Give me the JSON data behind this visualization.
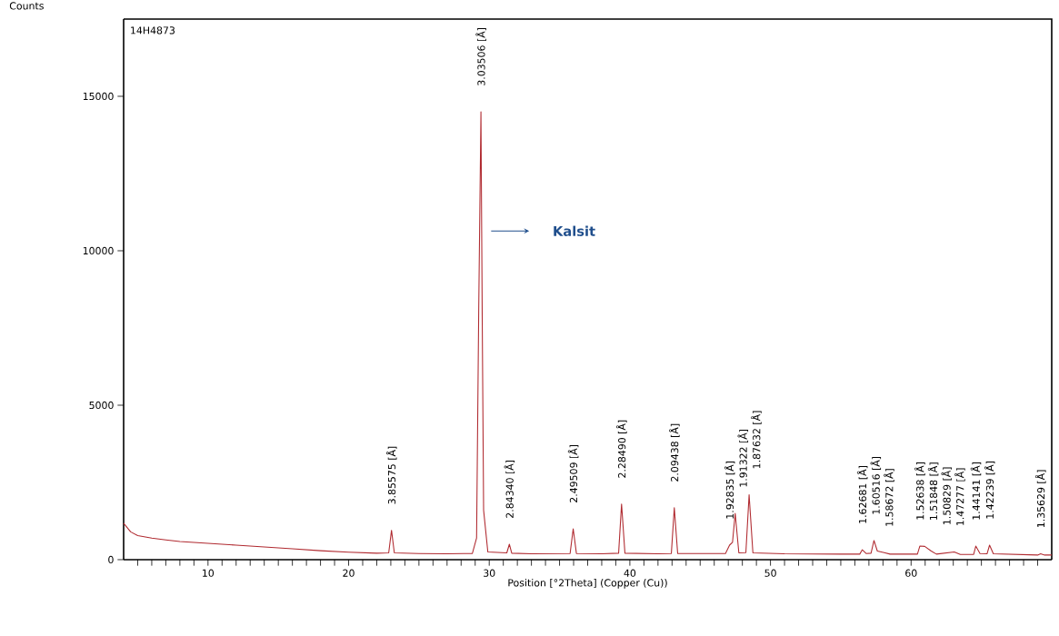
{
  "chart_data": {
    "type": "line",
    "xlabel": "Position [°2Theta] (Copper (Cu))",
    "ylabel": "Counts",
    "xlim": [
      4,
      70
    ],
    "ylim": [
      0,
      17500
    ],
    "xticks": [
      {
        "value": 5,
        "label": null
      },
      {
        "value": 6,
        "label": null
      },
      {
        "value": 7,
        "label": null
      },
      {
        "value": 8,
        "label": null
      },
      {
        "value": 9,
        "label": null
      },
      10,
      {
        "value": 11,
        "label": null
      },
      {
        "value": 12,
        "label": null
      },
      {
        "value": 13,
        "label": null
      },
      {
        "value": 14,
        "label": null
      },
      {
        "value": 15,
        "label": null
      },
      {
        "value": 16,
        "label": null
      },
      {
        "value": 17,
        "label": null
      },
      {
        "value": 18,
        "label": null
      },
      {
        "value": 19,
        "label": null
      },
      20,
      {
        "value": 21,
        "label": null
      },
      {
        "value": 22,
        "label": null
      },
      {
        "value": 23,
        "label": null
      },
      {
        "value": 24,
        "label": null
      },
      {
        "value": 25,
        "label": null
      },
      {
        "value": 26,
        "label": null
      },
      {
        "value": 27,
        "label": null
      },
      {
        "value": 28,
        "label": null
      },
      {
        "value": 29,
        "label": null
      },
      30,
      {
        "value": 31,
        "label": null
      },
      {
        "value": 32,
        "label": null
      },
      {
        "value": 33,
        "label": null
      },
      {
        "value": 34,
        "label": null
      },
      {
        "value": 35,
        "label": null
      },
      {
        "value": 36,
        "label": null
      },
      {
        "value": 37,
        "label": null
      },
      {
        "value": 38,
        "label": null
      },
      {
        "value": 39,
        "label": null
      },
      40,
      {
        "value": 41,
        "label": null
      },
      {
        "value": 42,
        "label": null
      },
      {
        "value": 43,
        "label": null
      },
      {
        "value": 44,
        "label": null
      },
      {
        "value": 45,
        "label": null
      },
      {
        "value": 46,
        "label": null
      },
      {
        "value": 47,
        "label": null
      },
      {
        "value": 48,
        "label": null
      },
      {
        "value": 49,
        "label": null
      },
      50,
      {
        "value": 51,
        "label": null
      },
      {
        "value": 52,
        "label": null
      },
      {
        "value": 53,
        "label": null
      },
      {
        "value": 54,
        "label": null
      },
      {
        "value": 55,
        "label": null
      },
      {
        "value": 56,
        "label": null
      },
      {
        "value": 57,
        "label": null
      },
      {
        "value": 58,
        "label": null
      },
      {
        "value": 59,
        "label": null
      },
      60,
      {
        "value": 61,
        "label": null
      },
      {
        "value": 62,
        "label": null
      },
      {
        "value": 63,
        "label": null
      },
      {
        "value": 64,
        "label": null
      },
      {
        "value": 65,
        "label": null
      },
      {
        "value": 66,
        "label": null
      },
      {
        "value": 67,
        "label": null
      },
      {
        "value": 68,
        "label": null
      },
      {
        "value": 69,
        "label": null
      }
    ],
    "yticks": [
      0,
      5000,
      10000,
      15000
    ],
    "series": [
      {
        "color": "#b02a30",
        "x": [
          4.0,
          4.5,
          5,
          6,
          7,
          8,
          9,
          10,
          12,
          14,
          16,
          18,
          20,
          22,
          22.85,
          23.05,
          23.25,
          25,
          27,
          28.8,
          29.1,
          29.25,
          29.41,
          29.5,
          29.6,
          29.9,
          31.25,
          31.43,
          31.6,
          33,
          35.75,
          35.97,
          36.2,
          38,
          39.2,
          39.41,
          39.65,
          42,
          42.95,
          43.16,
          43.4,
          46.8,
          47.09,
          47.3,
          47.49,
          47.75,
          48.25,
          48.48,
          48.75,
          51,
          55,
          56.35,
          56.53,
          56.8,
          57.15,
          57.36,
          57.6,
          58.09,
          58.5,
          60.45,
          60.62,
          60.97,
          61.43,
          61.8,
          63.07,
          63.5,
          64.45,
          64.6,
          64.9,
          65.4,
          65.58,
          65.85,
          69,
          69.21,
          69.5,
          70
        ],
        "values": [
          1180,
          900,
          780,
          700,
          640,
          590,
          560,
          530,
          470,
          410,
          350,
          290,
          240,
          210,
          220,
          950,
          220,
          200,
          190,
          200,
          700,
          8000,
          14500,
          7900,
          1600,
          250,
          220,
          500,
          210,
          190,
          200,
          1000,
          200,
          190,
          210,
          1800,
          210,
          190,
          200,
          1680,
          200,
          200,
          470,
          560,
          1500,
          220,
          230,
          2100,
          220,
          190,
          180,
          180,
          320,
          200,
          210,
          620,
          280,
          230,
          180,
          180,
          440,
          430,
          280,
          180,
          250,
          170,
          170,
          440,
          200,
          190,
          470,
          190,
          150,
          190,
          150,
          150
        ]
      }
    ],
    "annotations": [
      "14H4873",
      "Kalsit",
      {
        "text": "3.85575 [Å]",
        "x": 23.05,
        "y": 950
      },
      {
        "text": "3.03506 [Å]",
        "x": 29.41,
        "y": 14500
      },
      {
        "text": "2.84340 [Å]",
        "x": 31.43,
        "y": 500
      },
      {
        "text": "2.49509 [Å]",
        "x": 35.97,
        "y": 1000
      },
      {
        "text": "2.28490 [Å]",
        "x": 39.41,
        "y": 1800
      },
      {
        "text": "2.09438 [Å]",
        "x": 43.16,
        "y": 1680
      },
      {
        "text": "1.92835 [Å]",
        "x": 47.09,
        "y": 470
      },
      {
        "text": "1.91322 [Å]",
        "x": 47.49,
        "y": 1500
      },
      {
        "text": "1.87632 [Å]",
        "x": 48.48,
        "y": 2100
      },
      {
        "text": "1.62681 [Å]",
        "x": 56.53,
        "y": 320
      },
      {
        "text": "1.60516 [Å]",
        "x": 57.36,
        "y": 620
      },
      {
        "text": "1.58672 [Å]",
        "x": 58.09,
        "y": 230
      },
      {
        "text": "1.52638 [Å]",
        "x": 60.62,
        "y": 440
      },
      {
        "text": "1.51848 [Å]",
        "x": 60.97,
        "y": 430
      },
      {
        "text": "1.50829 [Å]",
        "x": 61.43,
        "y": 280
      },
      {
        "text": "1.47277 [Å]",
        "x": 63.07,
        "y": 250
      },
      {
        "text": "1.44141 [Å]",
        "x": 64.6,
        "y": 440
      },
      {
        "text": "1.42239 [Å]",
        "x": 65.58,
        "y": 470
      },
      {
        "text": "1.35629 [Å]",
        "x": 69.21,
        "y": 190
      }
    ]
  }
}
